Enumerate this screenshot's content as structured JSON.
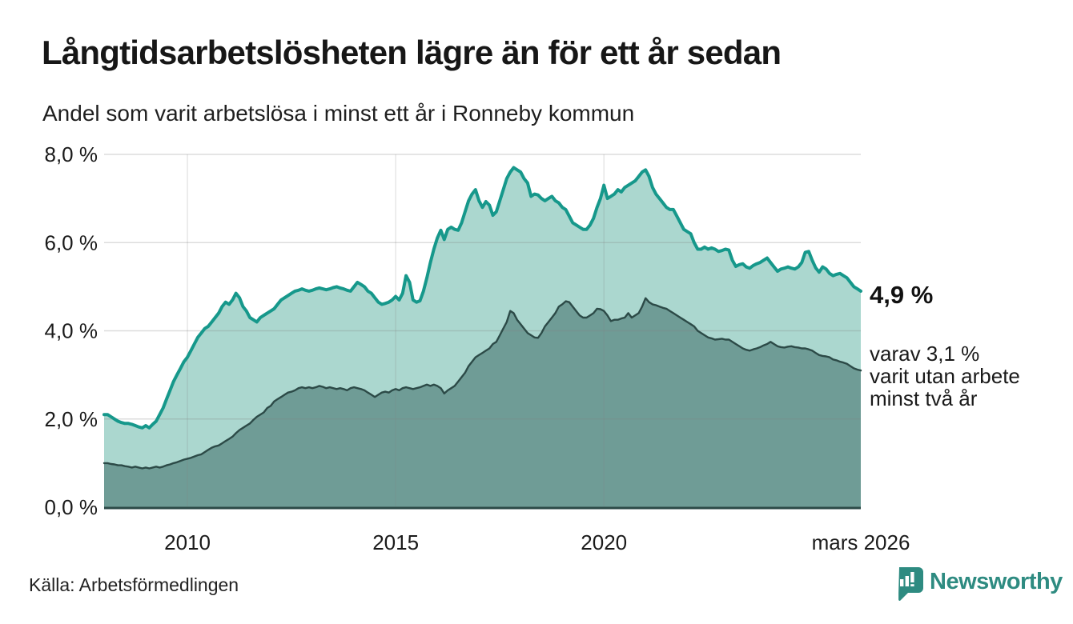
{
  "page": {
    "title": "Långtidsarbetslösheten lägre än för ett år sedan",
    "subtitle": "Andel som varit arbetslösa i minst ett år i Ronneby kommun",
    "source": "Källa: Arbetsförmedlingen",
    "brand": "Newsworthy"
  },
  "annotation": {
    "end_value": "4,9 %",
    "note_lines": [
      "varav 3,1 %",
      "varit utan arbete",
      "minst två år"
    ]
  },
  "colors": {
    "accent_teal": "#16988b",
    "light_fill": "#abd7cf",
    "dark_line": "#2c4a47",
    "dark_fill": "#6f9c96",
    "grid": "#e3e3e3",
    "text": "#1a1a1a",
    "brand_teal": "#2e8b81"
  },
  "chart_data": {
    "type": "area",
    "title": "Långtidsarbetslösheten lägre än för ett år sedan",
    "subtitle": "Andel som varit arbetslösa i minst ett år i Ronneby kommun",
    "unit": "%",
    "region": "Ronneby kommun",
    "x_start": "2008-01",
    "x_end": "2026-03",
    "frequency": "monthly",
    "ylim": [
      0,
      8
    ],
    "y_ticks": [
      0,
      2,
      4,
      6,
      8
    ],
    "y_tick_labels": [
      "0,0 %",
      "2,0 %",
      "4,0 %",
      "6,0 %",
      "8,0 %"
    ],
    "x_ticks": [
      {
        "index": 24,
        "label": "2010"
      },
      {
        "index": 84,
        "label": "2015"
      },
      {
        "index": 144,
        "label": "2020"
      },
      {
        "index": 218,
        "label": "mars 2026"
      }
    ],
    "grid": "horizontal and vertical light gridlines",
    "legend": "direct labels at right end of series",
    "series": [
      {
        "name": "Andel arbetslösa minst ett år",
        "end_label": "4,9 %",
        "line_color": "#16988b",
        "fill_color": "#abd7cf",
        "values": [
          2.1,
          2.1,
          2.05,
          2.0,
          1.95,
          1.92,
          1.9,
          1.9,
          1.88,
          1.85,
          1.82,
          1.8,
          1.85,
          1.8,
          1.88,
          1.95,
          2.1,
          2.25,
          2.45,
          2.65,
          2.85,
          3.0,
          3.15,
          3.3,
          3.4,
          3.55,
          3.7,
          3.85,
          3.95,
          4.05,
          4.1,
          4.2,
          4.3,
          4.4,
          4.55,
          4.65,
          4.6,
          4.7,
          4.85,
          4.75,
          4.55,
          4.45,
          4.3,
          4.25,
          4.2,
          4.3,
          4.35,
          4.4,
          4.45,
          4.5,
          4.6,
          4.7,
          4.75,
          4.8,
          4.85,
          4.9,
          4.92,
          4.95,
          4.92,
          4.9,
          4.92,
          4.95,
          4.97,
          4.95,
          4.93,
          4.95,
          4.98,
          5.0,
          4.97,
          4.95,
          4.92,
          4.9,
          5.0,
          5.1,
          5.05,
          5.0,
          4.9,
          4.85,
          4.75,
          4.65,
          4.6,
          4.62,
          4.65,
          4.7,
          4.78,
          4.7,
          4.85,
          5.25,
          5.1,
          4.7,
          4.65,
          4.68,
          4.9,
          5.2,
          5.55,
          5.85,
          6.1,
          6.28,
          6.07,
          6.3,
          6.35,
          6.3,
          6.28,
          6.45,
          6.7,
          6.95,
          7.1,
          7.2,
          6.95,
          6.8,
          6.93,
          6.85,
          6.62,
          6.7,
          6.95,
          7.2,
          7.45,
          7.6,
          7.7,
          7.65,
          7.6,
          7.45,
          7.35,
          7.05,
          7.1,
          7.08,
          7.0,
          6.95,
          7.0,
          7.05,
          6.95,
          6.9,
          6.8,
          6.75,
          6.6,
          6.45,
          6.4,
          6.35,
          6.3,
          6.3,
          6.4,
          6.55,
          6.8,
          7.0,
          7.3,
          7.0,
          7.05,
          7.1,
          7.2,
          7.15,
          7.25,
          7.3,
          7.35,
          7.4,
          7.5,
          7.6,
          7.65,
          7.5,
          7.25,
          7.1,
          7.0,
          6.9,
          6.8,
          6.75,
          6.75,
          6.6,
          6.45,
          6.3,
          6.25,
          6.2,
          6.0,
          5.85,
          5.85,
          5.9,
          5.85,
          5.88,
          5.85,
          5.8,
          5.82,
          5.85,
          5.83,
          5.6,
          5.46,
          5.5,
          5.52,
          5.45,
          5.42,
          5.48,
          5.52,
          5.55,
          5.6,
          5.65,
          5.55,
          5.45,
          5.35,
          5.4,
          5.42,
          5.45,
          5.42,
          5.4,
          5.45,
          5.55,
          5.78,
          5.8,
          5.6,
          5.43,
          5.33,
          5.45,
          5.4,
          5.3,
          5.25,
          5.28,
          5.3,
          5.25,
          5.2,
          5.1,
          5.0,
          4.95,
          4.9
        ]
      },
      {
        "name": "varav utan arbete minst två år",
        "end_label": "3,1 %",
        "line_color": "#2c4a47",
        "fill_color": "#6f9c96",
        "values": [
          1.0,
          1.0,
          0.98,
          0.97,
          0.95,
          0.95,
          0.93,
          0.92,
          0.9,
          0.92,
          0.9,
          0.88,
          0.9,
          0.88,
          0.9,
          0.92,
          0.9,
          0.92,
          0.95,
          0.97,
          1.0,
          1.02,
          1.05,
          1.08,
          1.1,
          1.12,
          1.15,
          1.18,
          1.2,
          1.25,
          1.3,
          1.35,
          1.38,
          1.4,
          1.45,
          1.5,
          1.55,
          1.6,
          1.68,
          1.75,
          1.8,
          1.85,
          1.9,
          1.98,
          2.05,
          2.1,
          2.15,
          2.25,
          2.3,
          2.4,
          2.45,
          2.5,
          2.55,
          2.6,
          2.62,
          2.65,
          2.7,
          2.72,
          2.7,
          2.72,
          2.7,
          2.72,
          2.75,
          2.73,
          2.7,
          2.72,
          2.7,
          2.68,
          2.7,
          2.68,
          2.65,
          2.7,
          2.72,
          2.7,
          2.68,
          2.65,
          2.6,
          2.55,
          2.5,
          2.55,
          2.6,
          2.62,
          2.6,
          2.65,
          2.68,
          2.65,
          2.7,
          2.72,
          2.7,
          2.68,
          2.7,
          2.72,
          2.75,
          2.78,
          2.75,
          2.78,
          2.75,
          2.7,
          2.58,
          2.65,
          2.7,
          2.75,
          2.85,
          2.95,
          3.05,
          3.2,
          3.3,
          3.4,
          3.45,
          3.5,
          3.55,
          3.6,
          3.7,
          3.75,
          3.9,
          4.05,
          4.2,
          4.45,
          4.4,
          4.25,
          4.15,
          4.05,
          3.95,
          3.9,
          3.85,
          3.84,
          3.95,
          4.1,
          4.2,
          4.3,
          4.4,
          4.55,
          4.6,
          4.67,
          4.65,
          4.55,
          4.45,
          4.35,
          4.3,
          4.3,
          4.35,
          4.4,
          4.5,
          4.49,
          4.45,
          4.35,
          4.22,
          4.25,
          4.25,
          4.28,
          4.3,
          4.4,
          4.3,
          4.35,
          4.4,
          4.55,
          4.74,
          4.65,
          4.6,
          4.58,
          4.55,
          4.52,
          4.5,
          4.45,
          4.4,
          4.35,
          4.3,
          4.25,
          4.2,
          4.15,
          4.1,
          4.0,
          3.95,
          3.9,
          3.85,
          3.83,
          3.8,
          3.81,
          3.82,
          3.8,
          3.8,
          3.75,
          3.7,
          3.65,
          3.6,
          3.57,
          3.55,
          3.58,
          3.6,
          3.63,
          3.67,
          3.7,
          3.75,
          3.7,
          3.65,
          3.63,
          3.62,
          3.64,
          3.65,
          3.63,
          3.62,
          3.6,
          3.6,
          3.58,
          3.55,
          3.5,
          3.45,
          3.43,
          3.42,
          3.4,
          3.35,
          3.33,
          3.3,
          3.28,
          3.25,
          3.2,
          3.15,
          3.12,
          3.1
        ]
      }
    ]
  }
}
